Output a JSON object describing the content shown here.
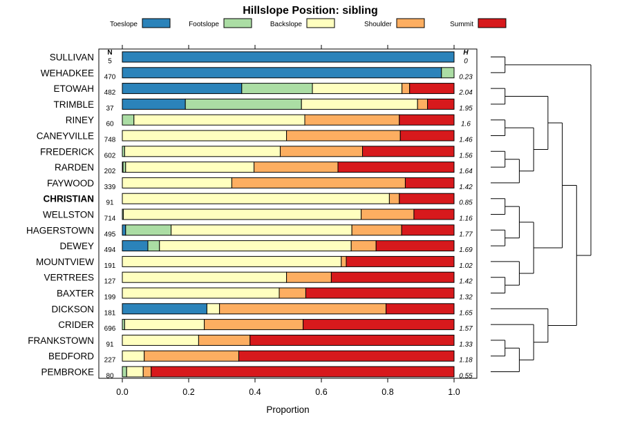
{
  "chart_data": {
    "type": "bar",
    "orientation": "horizontal",
    "stacked": true,
    "title": "Hillslope Position: sibling",
    "xlabel": "Proportion",
    "ylabel": "",
    "xlim": [
      0,
      1
    ],
    "xticks": [
      0.0,
      0.2,
      0.4,
      0.6,
      0.8,
      1.0
    ],
    "xtick_labels": [
      "0.0",
      "0.2",
      "0.4",
      "0.6",
      "0.8",
      "1.0"
    ],
    "legend_position": "top",
    "n_header": "N",
    "h_header": "H",
    "highlighted_category": "CHRISTIAN",
    "categories": [
      "SULLIVAN",
      "WEHADKEE",
      "ETOWAH",
      "TRIMBLE",
      "RINEY",
      "CANEYVILLE",
      "FREDERICK",
      "RARDEN",
      "FAYWOOD",
      "CHRISTIAN",
      "WELLSTON",
      "HAGERSTOWN",
      "DEWEY",
      "MOUNTVIEW",
      "VERTREES",
      "BAXTER",
      "DICKSON",
      "CRIDER",
      "FRANKSTOWN",
      "BEDFORD",
      "PEMBROKE"
    ],
    "n_values": [
      "5",
      "470",
      "482",
      "37",
      "60",
      "748",
      "602",
      "202",
      "339",
      "91",
      "714",
      "495",
      "494",
      "191",
      "127",
      "199",
      "181",
      "696",
      "91",
      "227",
      "80"
    ],
    "h_values": [
      "0",
      "0.23",
      "2.04",
      "1.95",
      "1.6",
      "1.46",
      "1.56",
      "1.64",
      "1.42",
      "0.85",
      "1.16",
      "1.77",
      "1.69",
      "1.02",
      "1.42",
      "1.32",
      "1.65",
      "1.57",
      "1.33",
      "1.18",
      "0.55"
    ],
    "series": [
      {
        "name": "Toeslope",
        "color": "#2b83ba",
        "values": [
          1.0,
          0.962,
          0.36,
          0.19,
          0.0,
          0.0,
          0.0,
          0.002,
          0.0,
          0.0,
          0.0,
          0.01,
          0.077,
          0.0,
          0.0,
          0.0,
          0.255,
          0.0,
          0.0,
          0.0,
          0.0
        ]
      },
      {
        "name": "Footslope",
        "color": "#abdda4",
        "values": [
          0.0,
          0.038,
          0.213,
          0.35,
          0.035,
          0.0,
          0.007,
          0.008,
          0.0,
          0.0,
          0.003,
          0.137,
          0.035,
          0.0,
          0.0,
          0.0,
          0.0,
          0.007,
          0.0,
          0.0,
          0.013
        ]
      },
      {
        "name": "Backslope",
        "color": "#ffffbf",
        "values": [
          0.0,
          0.0,
          0.27,
          0.35,
          0.515,
          0.495,
          0.469,
          0.387,
          0.33,
          0.805,
          0.717,
          0.545,
          0.578,
          0.66,
          0.495,
          0.473,
          0.038,
          0.24,
          0.23,
          0.066,
          0.05
        ]
      },
      {
        "name": "Shoulder",
        "color": "#fdae61",
        "values": [
          0.0,
          0.0,
          0.023,
          0.03,
          0.285,
          0.343,
          0.248,
          0.253,
          0.523,
          0.03,
          0.159,
          0.15,
          0.075,
          0.015,
          0.135,
          0.08,
          0.502,
          0.298,
          0.155,
          0.285,
          0.024
        ]
      },
      {
        "name": "Summit",
        "color": "#d7191c",
        "values": [
          0.0,
          0.0,
          0.134,
          0.08,
          0.165,
          0.162,
          0.276,
          0.35,
          0.147,
          0.165,
          0.121,
          0.158,
          0.235,
          0.325,
          0.37,
          0.447,
          0.205,
          0.455,
          0.615,
          0.649,
          0.913
        ]
      }
    ],
    "dendrogram": {
      "type": "hierarchical-clustering",
      "orientation": "left-to-right",
      "root": {
        "c": [
          {
            "c": [
              {
                "leaf": 0
              },
              {
                "leaf": 1
              }
            ]
          },
          {
            "c": [
              {
                "c": [
                  {
                    "c": [
                      {
                        "c": [
                          {
                            "leaf": 2
                          },
                          {
                            "leaf": 3
                          }
                        ]
                      },
                      {
                        "c": [
                          {
                            "c": [
                              {
                                "leaf": 4
                              },
                              {
                                "leaf": 5
                              }
                            ]
                          },
                          {
                            "c": [
                              {
                                "c": [
                                  {
                                    "leaf": 6
                                  },
                                  {
                                    "leaf": 7
                                  }
                                ]
                              },
                              {
                                "leaf": 8
                              }
                            ]
                          }
                        ]
                      }
                    ]
                  },
                  {
                    "c": [
                      {
                        "c": [
                          {
                            "c": [
                              {
                                "leaf": 9
                              },
                              {
                                "leaf": 10
                              }
                            ]
                          },
                          {
                            "c": [
                              {
                                "leaf": 11
                              },
                              {
                                "leaf": 12
                              }
                            ]
                          }
                        ]
                      },
                      {
                        "c": [
                          {
                            "leaf": 13
                          },
                          {
                            "c": [
                              {
                                "leaf": 14
                              },
                              {
                                "leaf": 15
                              }
                            ]
                          }
                        ]
                      }
                    ]
                  }
                ]
              },
              {
                "c": [
                  {
                    "leaf": 16
                  },
                  {
                    "c": [
                      {
                        "leaf": 17
                      },
                      {
                        "c": [
                          {
                            "c": [
                              {
                                "leaf": 18
                              },
                              {
                                "leaf": 19
                              }
                            ]
                          },
                          {
                            "leaf": 20
                          }
                        ]
                      }
                    ]
                  }
                ]
              }
            ]
          }
        ]
      }
    }
  }
}
